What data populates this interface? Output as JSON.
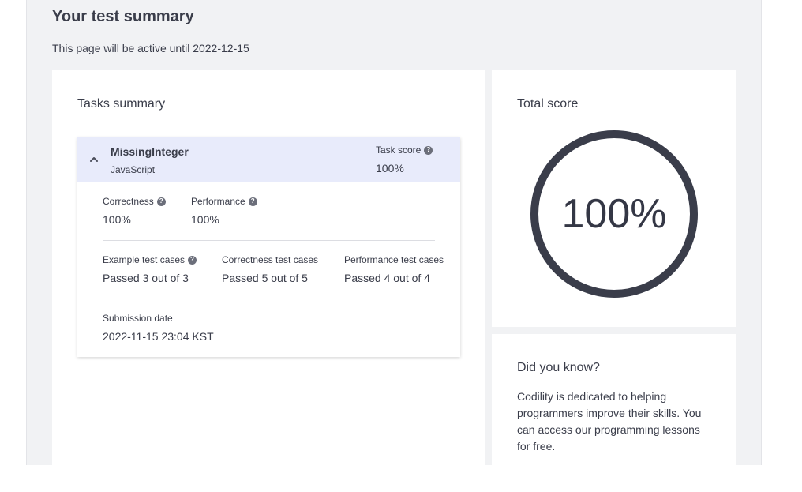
{
  "page": {
    "title": "Your test summary",
    "active_until": "This page will be active until 2022-12-15"
  },
  "tasks_summary": {
    "heading": "Tasks summary",
    "task": {
      "name": "MissingInteger",
      "language": "JavaScript",
      "task_score_label": "Task score",
      "task_score_value": "100%",
      "correctness_label": "Correctness",
      "correctness_value": "100%",
      "performance_label": "Performance",
      "performance_value": "100%",
      "example_cases_label": "Example test cases",
      "example_cases_value": "Passed 3 out of 3",
      "correctness_cases_label": "Correctness test cases",
      "correctness_cases_value": "Passed 5 out of 5",
      "performance_cases_label": "Performance test cases",
      "performance_cases_value": "Passed 4 out of 4",
      "submission_label": "Submission date",
      "submission_value": "2022-11-15 23:04 KST"
    }
  },
  "total_score": {
    "heading": "Total score",
    "value": "100%",
    "fraction": 1.0,
    "ring_color": "#3a3d4a"
  },
  "did_you_know": {
    "heading": "Did you know?",
    "text": "Codility is dedicated to helping programmers improve their skills. You can access our programming lessons for free."
  },
  "colors": {
    "task_header_bg": "#e8ebfb",
    "page_bg": "#f1f2f4"
  }
}
